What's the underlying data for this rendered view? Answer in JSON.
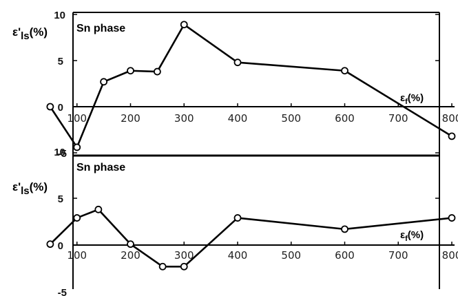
{
  "chart_data": [
    {
      "type": "line",
      "title": "Sn phase",
      "ylabel": "ε'ls(%)",
      "xlabel": "εf(%)",
      "ylabel_main": "ε'",
      "ylabel_sub": "ls",
      "ylabel_unit": "(%)",
      "xlabel_main": "ε",
      "xlabel_sub": "f",
      "xlabel_unit": "(%)",
      "ylim": [
        -5,
        10
      ],
      "xlim": [
        30,
        820
      ],
      "yticks": [
        "10",
        "5",
        "0",
        "-5"
      ],
      "ytick_values": [
        10,
        5,
        0,
        -5
      ],
      "xticks": [
        "100",
        "200",
        "300",
        "400",
        "500",
        "600",
        "700",
        "800"
      ],
      "xtick_values": [
        100,
        200,
        300,
        400,
        500,
        600,
        700,
        800
      ],
      "series": [
        {
          "x": [
            50,
            100,
            150,
            200,
            250,
            300,
            400,
            600,
            800
          ],
          "values": [
            0,
            -4.4,
            2.7,
            3.9,
            3.8,
            8.9,
            4.8,
            3.9,
            -3.2
          ]
        }
      ],
      "grid": false,
      "line_color": "#000000"
    },
    {
      "type": "line",
      "title": "Sn phase",
      "ylabel": "ε'ls(%)",
      "xlabel": "εf(%)",
      "ylabel_main": "ε'",
      "ylabel_sub": "ls",
      "ylabel_unit": "(%)",
      "xlabel_main": "ε",
      "xlabel_sub": "f",
      "xlabel_unit": "(%)",
      "ylim": [
        -5,
        10
      ],
      "xlim": [
        30,
        820
      ],
      "yticks": [
        "10",
        "5",
        "0",
        "-5"
      ],
      "ytick_values": [
        10,
        5,
        0,
        -5
      ],
      "xticks": [
        "100",
        "200",
        "300",
        "400",
        "500",
        "600",
        "700",
        "800"
      ],
      "xtick_values": [
        100,
        200,
        300,
        400,
        500,
        600,
        700,
        800
      ],
      "series": [
        {
          "x": [
            50,
            100,
            140,
            200,
            260,
            300,
            400,
            600,
            800
          ],
          "values": [
            0.1,
            2.9,
            3.8,
            0.1,
            -2.3,
            -2.3,
            2.9,
            1.7,
            2.9
          ]
        }
      ],
      "grid": false,
      "line_color": "#000000"
    }
  ]
}
